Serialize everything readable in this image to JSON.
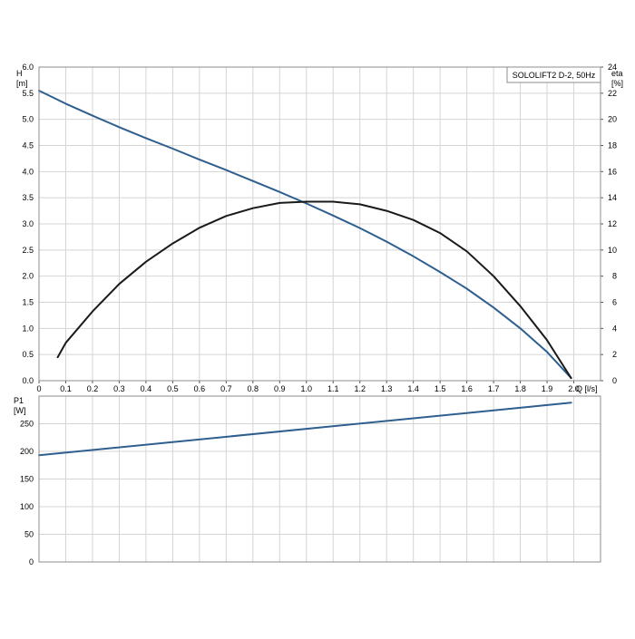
{
  "chart_data": [
    {
      "type": "line",
      "legend_box": "SOLOLIFT2 D-2, 50Hz",
      "x_axis": {
        "label": "Q [l/s]",
        "min": 0,
        "max": 2.1,
        "ticks": [
          "0",
          "0.1",
          "0.2",
          "0.3",
          "0.4",
          "0.5",
          "0.6",
          "0.7",
          "0.8",
          "0.9",
          "1.0",
          "1.1",
          "1.2",
          "1.3",
          "1.4",
          "1.5",
          "1.6",
          "1.7",
          "1.8",
          "1.9",
          "2.0"
        ]
      },
      "y_axis_left": {
        "label_line1": "H",
        "label_line2": "[m]",
        "min": 0,
        "max": 6.0,
        "ticks": [
          "0.0",
          "0.5",
          "1.0",
          "1.5",
          "2.0",
          "2.5",
          "3.0",
          "3.5",
          "4.0",
          "4.5",
          "5.0",
          "5.5",
          "6.0"
        ]
      },
      "y_axis_right": {
        "label_line1": "eta",
        "label_line2": "[%]",
        "min": 0,
        "max": 24,
        "ticks": [
          "0",
          "2",
          "4",
          "6",
          "8",
          "10",
          "12",
          "14",
          "16",
          "18",
          "20",
          "22",
          "24"
        ]
      },
      "grid": true,
      "series": [
        {
          "axis": "left",
          "color": "#2e5f8f",
          "x": [
            0,
            0.1,
            0.2,
            0.3,
            0.4,
            0.5,
            0.6,
            0.7,
            0.8,
            0.9,
            1.0,
            1.1,
            1.2,
            1.3,
            1.4,
            1.5,
            1.6,
            1.7,
            1.8,
            1.9,
            1.99
          ],
          "y": [
            5.55,
            5.3,
            5.07,
            4.85,
            4.64,
            4.44,
            4.23,
            4.03,
            3.82,
            3.61,
            3.39,
            3.16,
            2.92,
            2.66,
            2.38,
            2.08,
            1.76,
            1.4,
            1.0,
            0.55,
            0.05
          ]
        },
        {
          "axis": "right",
          "color": "#1a1a1a",
          "x": [
            0.07,
            0.1,
            0.2,
            0.3,
            0.4,
            0.5,
            0.6,
            0.7,
            0.8,
            0.9,
            1.0,
            1.05,
            1.1,
            1.2,
            1.3,
            1.4,
            1.5,
            1.6,
            1.7,
            1.8,
            1.9,
            1.99
          ],
          "y": [
            1.8,
            2.9,
            5.3,
            7.4,
            9.1,
            10.5,
            11.7,
            12.6,
            13.2,
            13.6,
            13.7,
            13.7,
            13.7,
            13.5,
            13.0,
            12.3,
            11.3,
            9.9,
            8.0,
            5.7,
            3.1,
            0.2
          ]
        }
      ]
    },
    {
      "type": "line",
      "x_axis": {
        "min": 0,
        "max": 2.1
      },
      "y_axis_left": {
        "label_line1": "P1",
        "label_line2": "[W]",
        "min": 0,
        "max": 300,
        "ticks": [
          "0",
          "50",
          "100",
          "150",
          "200",
          "250"
        ]
      },
      "grid": true,
      "series": [
        {
          "axis": "left",
          "color": "#2e5f8f",
          "x": [
            0,
            1.99
          ],
          "y": [
            193,
            288
          ]
        }
      ]
    }
  ]
}
